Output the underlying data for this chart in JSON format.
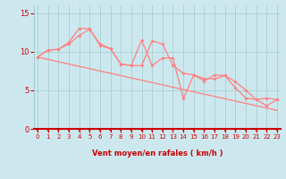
{
  "x": [
    0,
    1,
    2,
    3,
    4,
    5,
    6,
    7,
    8,
    9,
    10,
    11,
    12,
    13,
    14,
    15,
    16,
    17,
    18,
    19,
    20,
    21,
    22,
    23
  ],
  "y_line1": [
    9.3,
    10.2,
    10.3,
    11.2,
    13.0,
    13.0,
    10.8,
    10.4,
    8.4,
    8.2,
    11.5,
    8.2,
    9.2,
    9.2,
    3.9,
    7.0,
    6.2,
    7.0,
    6.9,
    6.1,
    5.0,
    3.8,
    4.0,
    3.8
  ],
  "y_line2": [
    9.3,
    10.2,
    10.3,
    11.0,
    12.1,
    12.9,
    11.0,
    10.4,
    8.4,
    8.2,
    8.2,
    11.4,
    11.0,
    8.2,
    7.2,
    7.0,
    6.5,
    6.5,
    6.9,
    5.3,
    4.0,
    3.8,
    3.0,
    3.8
  ],
  "y_trend": [
    9.3,
    9.0,
    8.7,
    8.4,
    8.1,
    7.8,
    7.5,
    7.2,
    6.9,
    6.6,
    6.3,
    6.0,
    5.7,
    5.4,
    5.1,
    4.8,
    4.5,
    4.2,
    3.9,
    3.6,
    3.3,
    3.0,
    2.7,
    2.4
  ],
  "bg_color": "#cce8ee",
  "line_color": "#ff8080",
  "grid_color": "#a0cccc",
  "axis_color": "#cc0000",
  "tick_label_color": "#cc0000",
  "xlabel": "Vent moyen/en rafales ( km/h )",
  "ylim": [
    0,
    16
  ],
  "xlim": [
    -0.3,
    23.3
  ],
  "yticks": [
    0,
    5,
    10,
    15
  ],
  "xticks": [
    0,
    1,
    2,
    3,
    4,
    5,
    6,
    7,
    8,
    9,
    10,
    11,
    12,
    13,
    14,
    15,
    16,
    17,
    18,
    19,
    20,
    21,
    22,
    23
  ]
}
